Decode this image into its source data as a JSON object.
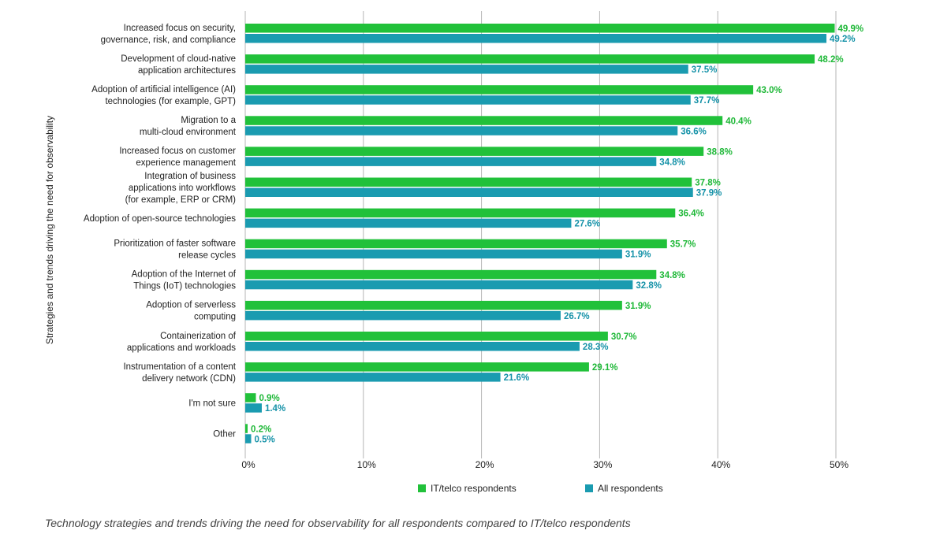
{
  "chart_data": {
    "type": "bar",
    "orientation": "horizontal",
    "ylabel": "Strategies and trends driving the need for observability",
    "xlim": [
      0,
      50
    ],
    "xticks": [
      "0%",
      "10%",
      "20%",
      "30%",
      "40%",
      "50%"
    ],
    "grid": true,
    "categories": [
      "Increased focus on security,\ngovernance, risk, and compliance",
      "Development of cloud-native\napplication architectures",
      "Adoption of artificial intelligence (AI)\ntechnologies (for example, GPT)",
      "Migration to a\nmulti-cloud environment",
      "Increased focus on customer\nexperience management",
      "Integration of business\napplications into workflows\n(for example, ERP or CRM)",
      "Adoption of open-source technologies",
      "Prioritization of faster software\nrelease cycles",
      "Adoption of the Internet of\nThings (IoT) technologies",
      "Adoption of serverless\ncomputing",
      "Containerization of\napplications and workloads",
      "Instrumentation of a content\ndelivery network (CDN)",
      "I'm not sure",
      "Other"
    ],
    "series": [
      {
        "name": "IT/telco respondents",
        "color": "#21c13a",
        "values": [
          49.9,
          48.2,
          43.0,
          40.4,
          38.8,
          37.8,
          36.4,
          35.7,
          34.8,
          31.9,
          30.7,
          29.1,
          0.9,
          0.2
        ]
      },
      {
        "name": "All respondents",
        "color": "#1a9bb0",
        "values": [
          49.2,
          37.5,
          37.7,
          36.6,
          34.8,
          37.9,
          27.6,
          31.9,
          32.8,
          26.7,
          28.3,
          21.6,
          1.4,
          0.5
        ]
      }
    ],
    "label_colors": [
      "#1fb838",
      "#1592a8"
    ],
    "legend_position": "bottom"
  },
  "caption": "Technology strategies and trends driving the need for observability for all respondents compared to IT/telco respondents"
}
